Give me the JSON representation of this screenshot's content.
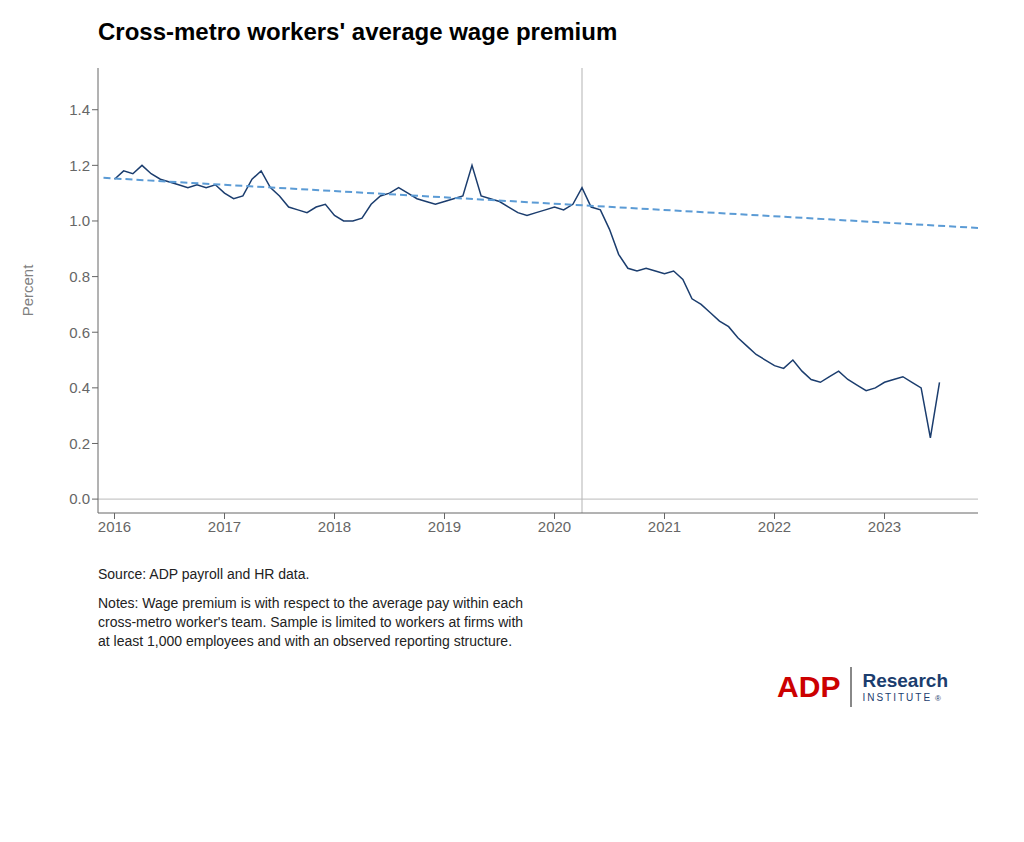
{
  "chart_data": {
    "type": "line",
    "title": "Cross-metro workers' average wage premium",
    "ylabel": "Percent",
    "source_text": "Source: ADP payroll and HR data.",
    "notes_text": "Notes: Wage premium is with respect to the average pay within each\ncross-metro worker's team. Sample is limited to workers at firms with\nat least 1,000 employees and with an observed reporting structure.",
    "xlim": [
      2015.85,
      2023.85
    ],
    "ylim": [
      -0.05,
      1.55
    ],
    "xticks": [
      2016,
      2017,
      2018,
      2019,
      2020,
      2021,
      2022,
      2023
    ],
    "yticks": [
      {
        "value": 0.0,
        "label": "0.0"
      },
      0.2,
      0.4,
      0.6,
      0.8,
      {
        "value": 1.0,
        "label": "1.0"
      },
      1.2,
      1.4
    ],
    "grid": false,
    "series": [
      {
        "color": "#1B3D6E",
        "line_style": "solid",
        "x": [
          2016.0,
          2016.083,
          2016.167,
          2016.25,
          2016.333,
          2016.417,
          2016.5,
          2016.583,
          2016.667,
          2016.75,
          2016.833,
          2016.917,
          2017.0,
          2017.083,
          2017.167,
          2017.25,
          2017.333,
          2017.417,
          2017.5,
          2017.583,
          2017.667,
          2017.75,
          2017.833,
          2017.917,
          2018.0,
          2018.083,
          2018.167,
          2018.25,
          2018.333,
          2018.417,
          2018.5,
          2018.583,
          2018.667,
          2018.75,
          2018.833,
          2018.917,
          2019.0,
          2019.083,
          2019.167,
          2019.25,
          2019.333,
          2019.417,
          2019.5,
          2019.583,
          2019.667,
          2019.75,
          2019.833,
          2019.917,
          2020.0,
          2020.083,
          2020.167,
          2020.25,
          2020.333,
          2020.417,
          2020.5,
          2020.583,
          2020.667,
          2020.75,
          2020.833,
          2020.917,
          2021.0,
          2021.083,
          2021.167,
          2021.25,
          2021.333,
          2021.417,
          2021.5,
          2021.583,
          2021.667,
          2021.75,
          2021.833,
          2021.917,
          2022.0,
          2022.083,
          2022.167,
          2022.25,
          2022.333,
          2022.417,
          2022.5,
          2022.583,
          2022.667,
          2022.75,
          2022.833,
          2022.917,
          2023.0,
          2023.083,
          2023.167,
          2023.25,
          2023.333,
          2023.417,
          2023.5
        ],
        "values": [
          1.15,
          1.18,
          1.17,
          1.2,
          1.17,
          1.15,
          1.14,
          1.13,
          1.12,
          1.13,
          1.12,
          1.13,
          1.1,
          1.08,
          1.09,
          1.15,
          1.18,
          1.12,
          1.09,
          1.05,
          1.04,
          1.03,
          1.05,
          1.06,
          1.02,
          1.0,
          1.0,
          1.01,
          1.06,
          1.09,
          1.1,
          1.12,
          1.1,
          1.08,
          1.07,
          1.06,
          1.07,
          1.08,
          1.09,
          1.2,
          1.09,
          1.08,
          1.07,
          1.05,
          1.03,
          1.02,
          1.03,
          1.04,
          1.05,
          1.04,
          1.06,
          1.12,
          1.05,
          1.04,
          0.97,
          0.88,
          0.83,
          0.82,
          0.83,
          0.82,
          0.81,
          0.82,
          0.79,
          0.72,
          0.7,
          0.67,
          0.64,
          0.62,
          0.58,
          0.55,
          0.52,
          0.5,
          0.48,
          0.47,
          0.5,
          0.46,
          0.43,
          0.42,
          0.44,
          0.46,
          0.43,
          0.41,
          0.39,
          0.4,
          0.42,
          0.43,
          0.44,
          0.42,
          0.4,
          0.22,
          0.42
        ]
      },
      {
        "color": "#5B9BD5",
        "line_style": "dashed",
        "x": [
          2015.9,
          2023.85
        ],
        "values": [
          1.155,
          0.975
        ]
      }
    ],
    "reference_lines": [
      {
        "axis": "x",
        "value": 2020.25,
        "color": "#C0C0C0"
      },
      {
        "axis": "y",
        "value": 0
      }
    ],
    "annotations": [
      {
        "text": "ADP",
        "color": "#CC0000"
      },
      {
        "text": "Research",
        "color": "#1B3D6E"
      },
      {
        "text": "INSTITUTE",
        "color": "#1B3D6E"
      },
      {
        "text": "®",
        "color": "#1B3D6E"
      }
    ]
  }
}
